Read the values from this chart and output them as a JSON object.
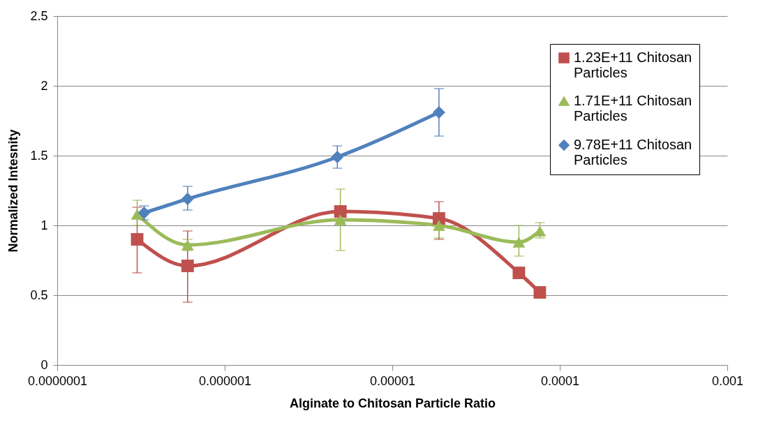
{
  "chart_data": {
    "type": "line",
    "xlabel": "Alginate to Chitosan Particle Ratio",
    "ylabel": "Normalized Intesnity",
    "log": "x",
    "xlim": [
      1e-07,
      0.001
    ],
    "xticks": [
      {
        "value": 1e-07,
        "label": "0.0000001"
      },
      {
        "value": 1e-06,
        "label": "0.000001"
      },
      {
        "value": 1e-05,
        "label": "0.00001"
      },
      0.0001,
      0.001
    ],
    "ylim": [
      0,
      2.5
    ],
    "yticks": [
      0,
      0.5,
      1,
      1.5,
      2,
      2.5
    ],
    "grid": "y",
    "legend": "top right",
    "line_style": "solid",
    "series": [
      {
        "name": "1.23E+11 Chitosan Particles",
        "color": "#c0504d",
        "marker": "square",
        "x": [
          3e-07,
          6e-07,
          4.9e-06,
          1.9e-05,
          5.7e-05,
          7.6e-05
        ],
        "values": [
          0.9,
          0.71,
          1.1,
          1.05,
          0.66,
          0.52
        ],
        "errors": [
          [
            0.66,
            1.13
          ],
          [
            0.45,
            0.96
          ],
          null,
          [
            0.9,
            1.17
          ],
          null,
          null
        ]
      },
      {
        "name": "1.71E+11 Chitosan Particles",
        "color": "#9bbb59",
        "marker": "triangle",
        "x": [
          3e-07,
          6e-07,
          4.9e-06,
          1.9e-05,
          5.7e-05,
          7.6e-05
        ],
        "values": [
          1.08,
          0.86,
          1.04,
          1.0,
          0.88,
          0.96
        ],
        "errors": [
          [
            1.0,
            1.18
          ],
          [
            0.82,
            0.9
          ],
          [
            0.82,
            1.26
          ],
          [
            0.91,
            1.0
          ],
          [
            0.78,
            1.0
          ],
          [
            0.91,
            1.02
          ]
        ]
      },
      {
        "name": "9.78E+11 Chitosan Particles",
        "color": "#4f81bd",
        "marker": "diamond",
        "x": [
          3.3e-07,
          6e-07,
          4.7e-06,
          1.9e-05
        ],
        "values": [
          1.09,
          1.19,
          1.49,
          1.81
        ],
        "errors": [
          [
            1.04,
            1.14
          ],
          [
            1.11,
            1.28
          ],
          [
            1.41,
            1.57
          ],
          [
            1.64,
            1.98
          ]
        ]
      }
    ]
  }
}
